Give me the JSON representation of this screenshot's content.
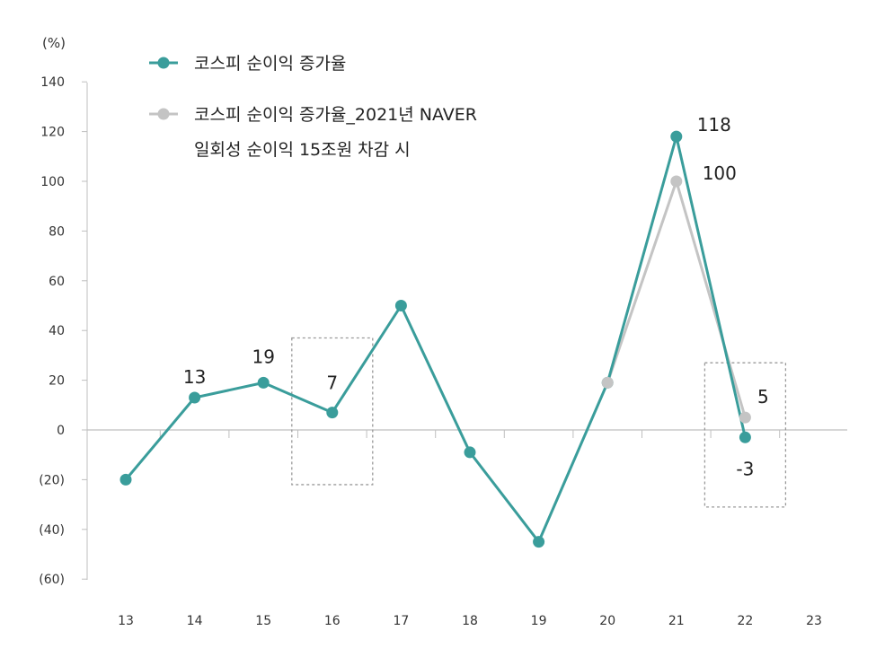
{
  "chart_data": {
    "type": "line",
    "unit_label": "(%)",
    "x": [
      "13",
      "14",
      "15",
      "16",
      "17",
      "18",
      "19",
      "20",
      "21",
      "22",
      "23"
    ],
    "ylim": [
      -60,
      140
    ],
    "y_ticks": [
      140,
      120,
      100,
      80,
      60,
      40,
      20,
      0,
      -20,
      -40,
      -60
    ],
    "y_tick_labels": [
      "140",
      "120",
      "100",
      "80",
      "60",
      "40",
      "20",
      "0",
      "(20)",
      "(40)",
      "(60)"
    ],
    "series": [
      {
        "name": "코스피 순이익 증가율",
        "color": "#3a9d9b",
        "x": [
          "13",
          "14",
          "15",
          "16",
          "17",
          "18",
          "19",
          "20",
          "21",
          "22"
        ],
        "values": [
          -20,
          13,
          19,
          7,
          50,
          -9,
          -45,
          19,
          118,
          -3
        ]
      },
      {
        "name": "코스피 순이익 증가율_2021년 NAVER 일회성 순이익 15조원 차감 시",
        "name_lines": [
          "코스피 순이익 증가율_2021년 NAVER",
          "일회성 순이익 15조원 차감 시"
        ],
        "color": "#c4c4c4",
        "x": [
          "20",
          "21",
          "22"
        ],
        "values": [
          19,
          100,
          5
        ]
      }
    ],
    "data_labels": [
      {
        "series": 0,
        "x": "14",
        "text": "13"
      },
      {
        "series": 0,
        "x": "15",
        "text": "19"
      },
      {
        "series": 0,
        "x": "16",
        "text": "7"
      },
      {
        "series": 0,
        "x": "21",
        "text": "118"
      },
      {
        "series": 1,
        "x": "21",
        "text": "100"
      },
      {
        "series": 1,
        "x": "22",
        "text": "5"
      },
      {
        "series": 0,
        "x": "22",
        "text": "-3"
      }
    ],
    "highlight_boxes": [
      {
        "x": "16"
      },
      {
        "x": "22"
      }
    ],
    "grid": false,
    "legend_position": "top-left"
  }
}
